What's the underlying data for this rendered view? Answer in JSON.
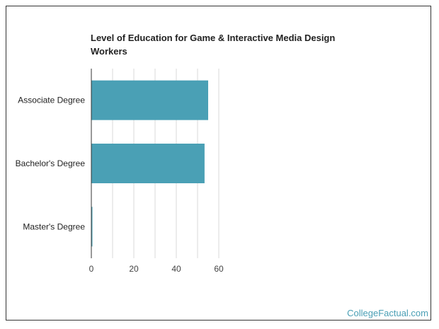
{
  "colors": {
    "bar": "#4aa0b5",
    "grid": "#d9d9d9",
    "axis": "#333333",
    "brand": "#4a9fb5"
  },
  "chart_data": {
    "type": "bar",
    "orientation": "horizontal",
    "title": "Level of Education for Game & Interactive Media Design Workers",
    "categories": [
      "Associate Degree",
      "Bachelor's Degree",
      "Master's Degree"
    ],
    "values": [
      55,
      53.3,
      0.4
    ],
    "xlabel": "",
    "ylabel": "",
    "xlim": [
      0,
      70
    ],
    "xticks": [
      0,
      20,
      40,
      60
    ],
    "grid": true,
    "legend": "none"
  },
  "footer": {
    "brand": "CollegeFactual.com"
  }
}
